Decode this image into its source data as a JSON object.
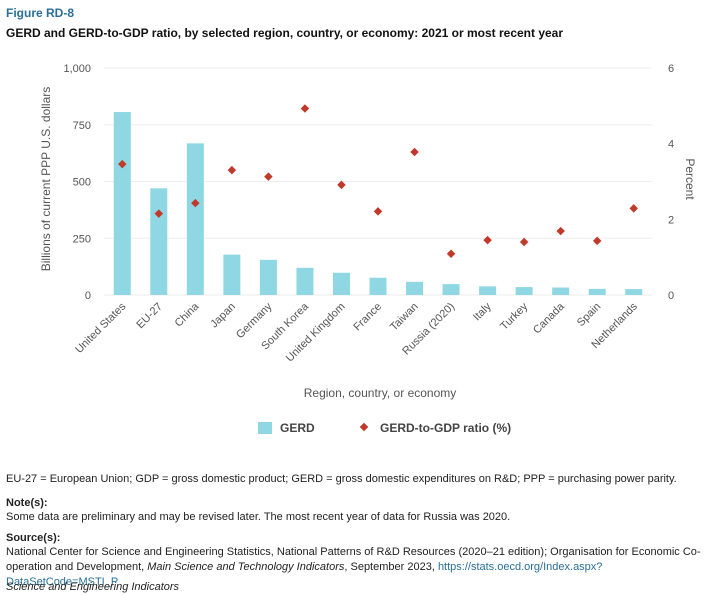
{
  "figure_label": "Figure RD-8",
  "figure_title": "GERD and GERD-to-GDP ratio, by selected region, country, or economy: 2021 or most recent year",
  "colors": {
    "bar": "#8fd8e3",
    "marker": "#c0392b",
    "accent": "#2a6f97"
  },
  "chart_data": {
    "type": "bar",
    "title": "",
    "xlabel": "Region, country, or economy",
    "ylabel": "Billions of current PPP U.S. dollars",
    "y2label": "Percent",
    "ylim": [
      0,
      1000
    ],
    "y2lim": [
      0,
      6
    ],
    "yticks": [
      "1,000",
      "750",
      "500",
      "250",
      "0"
    ],
    "y2ticks": [
      "6",
      "4",
      "2",
      "0"
    ],
    "categories": [
      "United States",
      "EU-27",
      "China",
      "Japan",
      "Germany",
      "South Korea",
      "United Kingdom",
      "France",
      "Taiwan",
      "Russia (2020)",
      "Italy",
      "Turkey",
      "Canada",
      "Spain",
      "Netherlands"
    ],
    "series": [
      {
        "name": "GERD",
        "type": "bar",
        "axis": "left",
        "values": [
          806,
          470,
          668,
          178,
          155,
          120,
          98,
          76,
          58,
          48,
          38,
          35,
          33,
          27,
          26
        ]
      },
      {
        "name": "GERD-to-GDP ratio (%)",
        "type": "scatter",
        "axis": "right",
        "values": [
          3.46,
          2.15,
          2.43,
          3.3,
          3.13,
          4.93,
          2.91,
          2.21,
          3.78,
          1.09,
          1.45,
          1.4,
          1.69,
          1.43,
          2.29
        ]
      }
    ],
    "legend": [
      "GERD",
      "GERD-to-GDP ratio (%)"
    ],
    "legend_position": "bottom-center"
  },
  "notes": {
    "abbrev": "EU-27 = European Union; GDP = gross domestic product; GERD = gross domestic expenditures on R&D; PPP = purchasing power parity.",
    "notes_heading": "Note(s):",
    "notes_text": "Some data are preliminary and may be revised later. The most recent year of data for Russia was 2020.",
    "source_heading": "Source(s):",
    "source_text_1": "National Center for Science and Engineering Statistics, National Patterns of R&D Resources (2020–21 edition); Organisation for Economic Co-operation and Development, ",
    "source_italic": "Main Science and Technology Indicators",
    "source_text_2": ", September 2023, ",
    "source_link": "https://stats.oecd.org/Index.aspx?DataSetCode=MSTI_P",
    "footer": "Science and Engineering Indicators"
  }
}
